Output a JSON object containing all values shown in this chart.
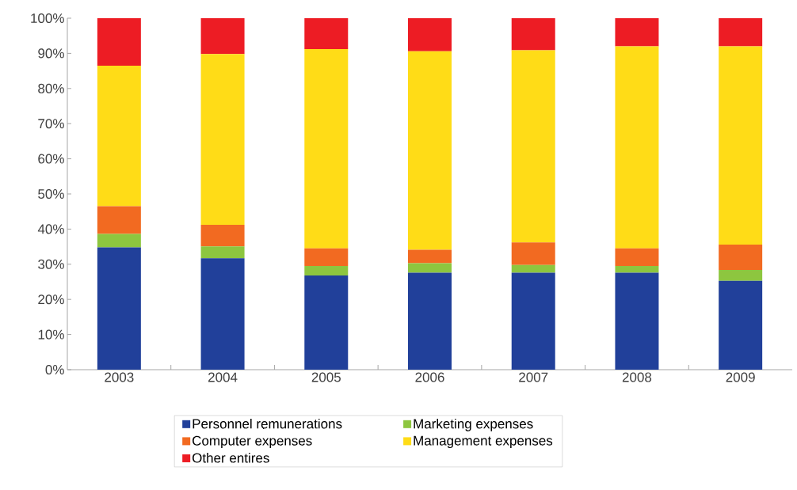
{
  "chart_data": {
    "type": "bar",
    "stacked": true,
    "legend": "bottom",
    "categories": [
      "2003",
      "2004",
      "2005",
      "2006",
      "2007",
      "2008",
      "2009"
    ],
    "series": [
      {
        "name": "Personnel remunerations",
        "color": "#21409a",
        "values": [
          34.8,
          31.7,
          26.8,
          27.6,
          27.6,
          27.6,
          25.3
        ]
      },
      {
        "name": "Marketing expenses",
        "color": "#8dc63f",
        "values": [
          3.8,
          3.4,
          2.7,
          2.7,
          2.2,
          1.9,
          3.1
        ]
      },
      {
        "name": "Computer expenses",
        "color": "#f26a21",
        "values": [
          7.9,
          6.1,
          5.0,
          3.8,
          6.4,
          5.0,
          7.2
        ]
      },
      {
        "name": "Management expenses",
        "color": "#ffdc17",
        "values": [
          40.0,
          48.6,
          56.7,
          56.5,
          54.7,
          57.5,
          56.4
        ]
      },
      {
        "name": "Other entires",
        "color": "#ed1c24",
        "values": [
          13.5,
          10.2,
          8.8,
          9.4,
          9.1,
          8.0,
          8.0
        ]
      }
    ],
    "ylim": [
      0,
      100
    ],
    "yticks": [
      {
        "value": 0,
        "label": "0%"
      },
      {
        "value": 10,
        "label": "10%"
      },
      {
        "value": 20,
        "label": "20%"
      },
      {
        "value": 30,
        "label": "30%"
      },
      {
        "value": 40,
        "label": "40%"
      },
      {
        "value": 50,
        "label": "50%"
      },
      {
        "value": 60,
        "label": "60%"
      },
      {
        "value": 70,
        "label": "70%"
      },
      {
        "value": 80,
        "label": "80%"
      },
      {
        "value": 90,
        "label": "90%"
      },
      {
        "value": 100,
        "label": "100%"
      }
    ]
  }
}
